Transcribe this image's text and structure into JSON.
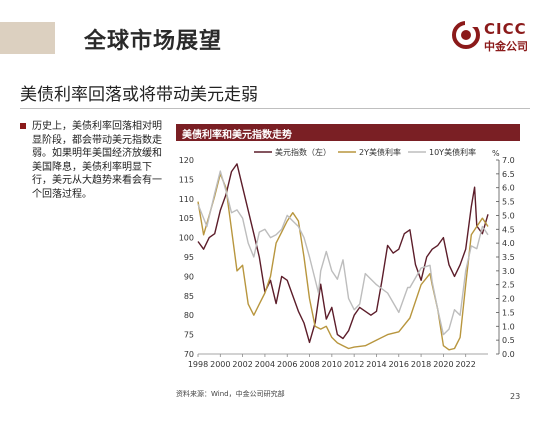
{
  "header": {
    "title": "全球市场展望"
  },
  "logo": {
    "text": "CICC",
    "sub": "中金公司",
    "color": "#8b1a1a"
  },
  "headline": "美债利率回落或将带动美元走弱",
  "bullet": "历史上，美债利率回落相对明显阶段，都会带动美元指数走弱。如果明年美国经济放缓和美国降息，美债利率明显下行，美元从大趋势来看会有一个回落过程。",
  "chart_title": "美债利率和美元指数走势",
  "source": "资料来源：Wind，中金公司研究部",
  "page_number": "23",
  "chart_data": {
    "type": "line",
    "legend_position": "top",
    "x_ticks": [
      "1998",
      "2000",
      "2002",
      "2004",
      "2006",
      "2008",
      "2010",
      "2012",
      "2014",
      "2016",
      "2018",
      "2020",
      "2022"
    ],
    "xlim": [
      1998,
      2024
    ],
    "y_left": {
      "ticks": [
        "70",
        "75",
        "80",
        "85",
        "90",
        "95",
        "100",
        "105",
        "110",
        "115",
        "120"
      ],
      "ylim": [
        70,
        120
      ]
    },
    "y_right": {
      "ticks": [
        "0.0",
        "0.5",
        "1.0",
        "1.5",
        "2.0",
        "2.5",
        "3.0",
        "3.5",
        "4.0",
        "4.5",
        "5.0",
        "5.5",
        "6.0",
        "6.5",
        "7.0"
      ],
      "ylim": [
        0,
        7
      ],
      "unit": "%"
    },
    "series": [
      {
        "name": "美元指数（左）",
        "axis": "left",
        "color": "#5c1d2a",
        "points": [
          [
            1998,
            99
          ],
          [
            1998.5,
            97
          ],
          [
            1999,
            100
          ],
          [
            1999.5,
            101
          ],
          [
            2000,
            107
          ],
          [
            2000.5,
            111
          ],
          [
            2001,
            117
          ],
          [
            2001.5,
            119
          ],
          [
            2002,
            113
          ],
          [
            2002.5,
            107
          ],
          [
            2003,
            101
          ],
          [
            2003.5,
            95
          ],
          [
            2004,
            86
          ],
          [
            2004.5,
            89
          ],
          [
            2005,
            83
          ],
          [
            2005.5,
            90
          ],
          [
            2006,
            89
          ],
          [
            2006.5,
            85
          ],
          [
            2007,
            81
          ],
          [
            2007.5,
            78
          ],
          [
            2008,
            73
          ],
          [
            2008.5,
            78
          ],
          [
            2009,
            88
          ],
          [
            2009.5,
            79
          ],
          [
            2010,
            82
          ],
          [
            2010.5,
            75
          ],
          [
            2011,
            74
          ],
          [
            2011.5,
            76
          ],
          [
            2012,
            80
          ],
          [
            2012.5,
            82
          ],
          [
            2013,
            81
          ],
          [
            2013.5,
            80
          ],
          [
            2014,
            81
          ],
          [
            2014.5,
            89
          ],
          [
            2015,
            98
          ],
          [
            2015.5,
            96
          ],
          [
            2016,
            97
          ],
          [
            2016.5,
            101
          ],
          [
            2017,
            102
          ],
          [
            2017.5,
            93
          ],
          [
            2018,
            89
          ],
          [
            2018.5,
            95
          ],
          [
            2019,
            97
          ],
          [
            2019.5,
            98
          ],
          [
            2020,
            100
          ],
          [
            2020.5,
            93
          ],
          [
            2021,
            90
          ],
          [
            2021.5,
            93
          ],
          [
            2022,
            97
          ],
          [
            2022.5,
            108
          ],
          [
            2022.8,
            113
          ],
          [
            2023,
            103
          ],
          [
            2023.5,
            101
          ],
          [
            2024,
            106
          ]
        ]
      },
      {
        "name": "2Y美债利率",
        "axis": "right",
        "color": "#b8963e",
        "points": [
          [
            1998,
            5.5
          ],
          [
            1998.5,
            4.3
          ],
          [
            1999,
            5.0
          ],
          [
            1999.5,
            5.7
          ],
          [
            2000,
            6.5
          ],
          [
            2000.5,
            6.0
          ],
          [
            2001,
            4.5
          ],
          [
            2001.5,
            3.0
          ],
          [
            2002,
            3.2
          ],
          [
            2002.5,
            1.8
          ],
          [
            2003,
            1.4
          ],
          [
            2003.5,
            1.8
          ],
          [
            2004,
            2.2
          ],
          [
            2004.5,
            2.8
          ],
          [
            2005,
            4.0
          ],
          [
            2005.5,
            4.4
          ],
          [
            2006,
            4.8
          ],
          [
            2006.5,
            5.1
          ],
          [
            2007,
            4.8
          ],
          [
            2007.5,
            3.5
          ],
          [
            2008,
            2.0
          ],
          [
            2008.5,
            1.0
          ],
          [
            2009,
            0.9
          ],
          [
            2009.5,
            1.0
          ],
          [
            2010,
            0.6
          ],
          [
            2010.5,
            0.4
          ],
          [
            2011,
            0.3
          ],
          [
            2011.5,
            0.2
          ],
          [
            2012,
            0.25
          ],
          [
            2013,
            0.3
          ],
          [
            2014,
            0.5
          ],
          [
            2015,
            0.7
          ],
          [
            2016,
            0.8
          ],
          [
            2017,
            1.3
          ],
          [
            2018,
            2.5
          ],
          [
            2018.8,
            2.9
          ],
          [
            2019,
            2.5
          ],
          [
            2019.5,
            1.6
          ],
          [
            2020,
            0.3
          ],
          [
            2020.5,
            0.15
          ],
          [
            2021,
            0.2
          ],
          [
            2021.5,
            0.6
          ],
          [
            2022,
            2.5
          ],
          [
            2022.5,
            4.3
          ],
          [
            2023,
            4.6
          ],
          [
            2023.5,
            4.9
          ],
          [
            2024,
            4.6
          ]
        ]
      },
      {
        "name": "10Y美债利率",
        "axis": "right",
        "color": "#bdbdbd",
        "points": [
          [
            1998,
            5.4
          ],
          [
            1998.8,
            4.6
          ],
          [
            1999.5,
            5.8
          ],
          [
            2000,
            6.6
          ],
          [
            2000.5,
            5.9
          ],
          [
            2001,
            5.1
          ],
          [
            2001.5,
            5.2
          ],
          [
            2002,
            4.9
          ],
          [
            2002.5,
            4.0
          ],
          [
            2003,
            3.5
          ],
          [
            2003.5,
            4.4
          ],
          [
            2004,
            4.5
          ],
          [
            2004.5,
            4.2
          ],
          [
            2005,
            4.3
          ],
          [
            2005.5,
            4.5
          ],
          [
            2006,
            5.0
          ],
          [
            2006.5,
            4.8
          ],
          [
            2007,
            4.6
          ],
          [
            2007.5,
            4.2
          ],
          [
            2008,
            3.5
          ],
          [
            2008.8,
            2.2
          ],
          [
            2009,
            3.0
          ],
          [
            2009.5,
            3.7
          ],
          [
            2010,
            3.0
          ],
          [
            2010.5,
            2.7
          ],
          [
            2011,
            3.4
          ],
          [
            2011.5,
            2.0
          ],
          [
            2012,
            1.6
          ],
          [
            2012.5,
            1.8
          ],
          [
            2013,
            2.9
          ],
          [
            2014,
            2.5
          ],
          [
            2015,
            2.2
          ],
          [
            2016,
            1.5
          ],
          [
            2016.8,
            2.4
          ],
          [
            2017,
            2.4
          ],
          [
            2018,
            3.1
          ],
          [
            2018.8,
            3.2
          ],
          [
            2019,
            2.6
          ],
          [
            2019.5,
            1.6
          ],
          [
            2020,
            0.7
          ],
          [
            2020.5,
            0.9
          ],
          [
            2021,
            1.6
          ],
          [
            2021.5,
            1.4
          ],
          [
            2022,
            3.0
          ],
          [
            2022.5,
            3.9
          ],
          [
            2023,
            3.8
          ],
          [
            2023.5,
            4.6
          ],
          [
            2024,
            4.3
          ]
        ]
      }
    ]
  }
}
